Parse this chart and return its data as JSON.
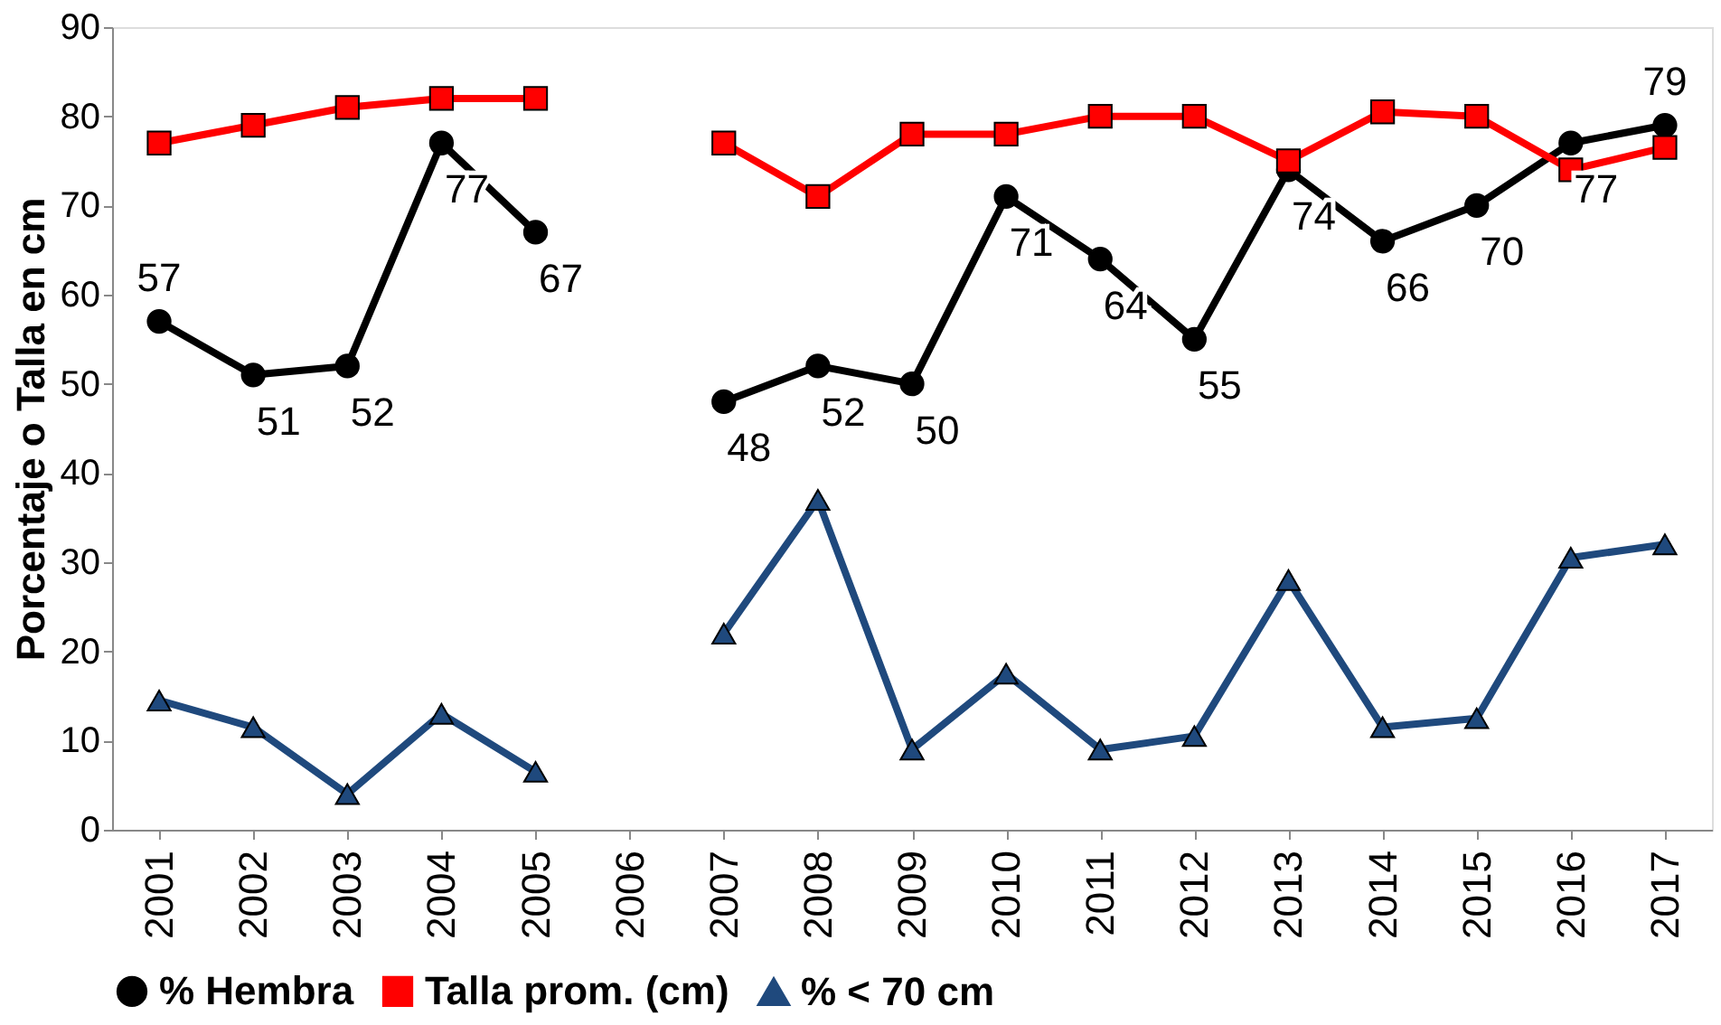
{
  "chart_data": {
    "type": "line",
    "categories": [
      "2001",
      "2002",
      "2003",
      "2004",
      "2005",
      "2006",
      "2007",
      "2008",
      "2009",
      "2010",
      "2011",
      "2012",
      "2013",
      "2014",
      "2015",
      "2016",
      "2017"
    ],
    "series": [
      {
        "name": "% Hembra",
        "color": "#000000",
        "marker": "circle",
        "values": [
          57,
          51,
          52,
          77,
          67,
          null,
          48,
          52,
          50,
          71,
          64,
          55,
          74,
          66,
          70,
          77,
          79
        ],
        "value_labels": [
          "57",
          "51",
          "52",
          "77",
          "67",
          null,
          "48",
          "52",
          "50",
          "71",
          "64",
          "55",
          "74",
          "66",
          "70",
          "77",
          "79"
        ]
      },
      {
        "name": "Talla prom. (cm)",
        "color": "#ff0000",
        "marker": "square",
        "values": [
          77,
          79,
          81,
          82,
          82,
          null,
          77,
          71,
          78,
          78,
          80,
          80,
          75,
          80.5,
          80,
          74,
          76.5
        ]
      },
      {
        "name": "% < 70 cm",
        "color": "#1f497d",
        "marker": "triangle",
        "values": [
          14.5,
          11.5,
          4,
          13,
          6.5,
          null,
          22,
          37,
          9,
          17.5,
          9,
          10.5,
          28,
          11.5,
          12.5,
          30.5,
          32
        ]
      }
    ],
    "ylabel": "Porcentaje  o  Talla en cm",
    "ylim": [
      0,
      90
    ],
    "yticks": [
      0,
      10,
      20,
      30,
      40,
      50,
      60,
      70,
      80,
      90
    ],
    "grid": false,
    "legend": "bottom"
  }
}
